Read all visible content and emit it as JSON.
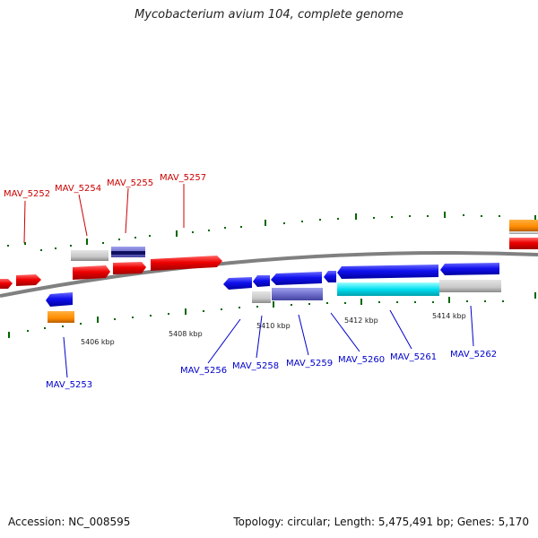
{
  "title": "Mycobacterium avium 104, complete genome",
  "footer": {
    "accession": "Accession: NC_008595",
    "summary": "Topology: circular; Length: 5,475,491 bp; Genes: 5,170"
  },
  "colors": {
    "forward_label": "#cc0000",
    "reverse_label": "#0000cc",
    "tick": "#006600",
    "backbone": "#808080"
  },
  "scale_labels": [
    "5406 kbp",
    "5408 kbp",
    "5410 kbp",
    "5412 kbp",
    "5414 kbp"
  ],
  "forward_genes": [
    "MAV_5252",
    "MAV_5254",
    "MAV_5255",
    "MAV_5257"
  ],
  "reverse_genes": [
    "MAV_5253",
    "MAV_5256",
    "MAV_5258",
    "MAV_5259",
    "MAV_5260",
    "MAV_5261",
    "MAV_5262"
  ]
}
